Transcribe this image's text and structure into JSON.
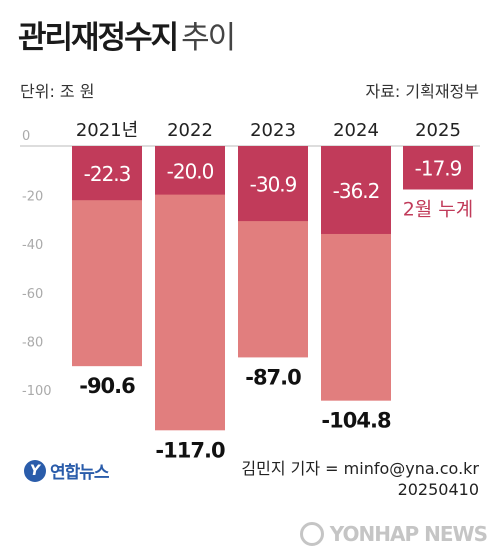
{
  "header": {
    "title": "관리재정수지",
    "title_suffix": "추이",
    "unit": "단위: 조 원",
    "source": "자료: 기획재정부"
  },
  "footer": {
    "logo_text": "연합뉴스",
    "logo_mark": "Y",
    "credit_line1": "김민지 기자 = minfo@yna.co.kr",
    "credit_line2": "20250410",
    "watermark": "YONHAP NEWS"
  },
  "colors": {
    "annual_total": "#e17e7e",
    "q1_portion": "#c13b5a",
    "annotation_text": "#c13b5a",
    "axis_text": "#aaaaaa"
  },
  "chart_data": {
    "type": "bar",
    "categories": [
      "2021년",
      "2022",
      "2023",
      "2024",
      "2025"
    ],
    "series": [
      {
        "values": [
          -90.6,
          -117.0,
          -87.0,
          -104.8,
          null
        ]
      },
      {
        "values": [
          -22.3,
          -20.0,
          -30.9,
          -36.2,
          -17.9
        ]
      }
    ],
    "total_labels": [
      "-90.6",
      "-117.0",
      "-87.0",
      "-104.8",
      ""
    ],
    "partial_labels": [
      "-22.3",
      "-20.0",
      "-30.9",
      "-36.2",
      "-17.9"
    ],
    "annotation": "2월 누계",
    "y_ticks": [
      0,
      -20,
      -40,
      -60,
      -80,
      -100
    ],
    "ylim": [
      -120,
      0
    ],
    "grid": false
  }
}
